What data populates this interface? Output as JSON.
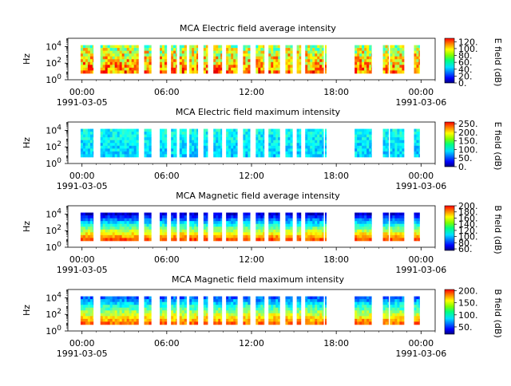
{
  "chart_data": [
    {
      "type": "heatmap",
      "title": "MCA  Electric field average intensity",
      "ylabel": "Hz",
      "yscale": "log",
      "ylim": [
        1,
        100000
      ],
      "yticks": [
        {
          "exp": "0"
        },
        {
          "exp": "2"
        },
        {
          "exp": "4"
        }
      ],
      "x_ticks": [
        "00:00",
        "06:00",
        "12:00",
        "18:00",
        "00:00"
      ],
      "x_dates": [
        "1991-03-05",
        "1991-03-06"
      ],
      "xlim_hours": [
        -1,
        25
      ],
      "colorbar": {
        "label": "E field (dB)",
        "ticks": [
          "0.",
          "20.",
          "40.",
          "60.",
          "80.",
          "100.",
          "120."
        ],
        "min": 0,
        "max": 130
      },
      "level": 0.55,
      "data_segments_hours": [
        [
          -0.1,
          0.8
        ],
        [
          1.3,
          4.0
        ],
        [
          4.4,
          4.9
        ],
        [
          5.5,
          6.0
        ],
        [
          6.3,
          6.7
        ],
        [
          6.9,
          7.4
        ],
        [
          7.6,
          8.2
        ],
        [
          8.6,
          8.9
        ],
        [
          9.3,
          9.9
        ],
        [
          10.2,
          11.0
        ],
        [
          11.4,
          11.9
        ],
        [
          12.3,
          12.9
        ],
        [
          13.2,
          14.0
        ],
        [
          14.4,
          14.9
        ],
        [
          15.2,
          15.5
        ],
        [
          15.8,
          17.1
        ],
        [
          17.2,
          17.3
        ],
        [
          19.3,
          20.5
        ],
        [
          21.3,
          21.7
        ],
        [
          21.8,
          22.8
        ],
        [
          23.5,
          23.9
        ]
      ]
    },
    {
      "type": "heatmap",
      "title": "MCA  Electric field maximum intensity",
      "ylabel": "Hz",
      "yscale": "log",
      "ylim": [
        1,
        100000
      ],
      "yticks": [
        {
          "exp": "0"
        },
        {
          "exp": "2"
        },
        {
          "exp": "4"
        }
      ],
      "x_ticks": [
        "00:00",
        "06:00",
        "12:00",
        "18:00",
        "00:00"
      ],
      "x_dates": [
        "1991-03-05",
        "1991-03-06"
      ],
      "xlim_hours": [
        -1,
        25
      ],
      "colorbar": {
        "label": "E field (dB)",
        "ticks": [
          "0.",
          "50.",
          "100.",
          "150.",
          "200.",
          "250."
        ],
        "min": 0,
        "max": 260
      },
      "level": 0.38,
      "data_segments_hours": [
        [
          -0.1,
          0.8
        ],
        [
          1.3,
          4.0
        ],
        [
          4.4,
          4.9
        ],
        [
          5.5,
          6.0
        ],
        [
          6.3,
          6.7
        ],
        [
          6.9,
          7.4
        ],
        [
          7.6,
          8.2
        ],
        [
          8.6,
          8.9
        ],
        [
          9.3,
          9.9
        ],
        [
          10.2,
          11.0
        ],
        [
          11.4,
          11.9
        ],
        [
          12.3,
          12.9
        ],
        [
          13.2,
          14.0
        ],
        [
          14.4,
          14.9
        ],
        [
          15.2,
          15.5
        ],
        [
          15.8,
          17.1
        ],
        [
          17.2,
          17.3
        ],
        [
          19.3,
          20.5
        ],
        [
          21.3,
          21.7
        ],
        [
          21.8,
          22.8
        ],
        [
          23.5,
          23.9
        ]
      ]
    },
    {
      "type": "heatmap",
      "title": "MCA  Magnetic field average intensity",
      "ylabel": "Hz",
      "yscale": "log",
      "ylim": [
        1,
        100000
      ],
      "yticks": [
        {
          "exp": "0"
        },
        {
          "exp": "2"
        },
        {
          "exp": "4"
        }
      ],
      "x_ticks": [
        "00:00",
        "06:00",
        "12:00",
        "18:00",
        "00:00"
      ],
      "x_dates": [
        "1991-03-05",
        "1991-03-06"
      ],
      "xlim_hours": [
        -1,
        25
      ],
      "colorbar": {
        "label": "B field (dB)",
        "ticks": [
          "60.",
          "80.",
          "100.",
          "120.",
          "140.",
          "160.",
          "180.",
          "200."
        ],
        "min": 55,
        "max": 200
      },
      "level": 0.45,
      "data_segments_hours": [
        [
          -0.1,
          0.8
        ],
        [
          1.3,
          4.0
        ],
        [
          4.4,
          4.9
        ],
        [
          5.5,
          6.0
        ],
        [
          6.3,
          6.7
        ],
        [
          6.9,
          7.4
        ],
        [
          7.6,
          8.2
        ],
        [
          8.6,
          8.9
        ],
        [
          9.3,
          9.9
        ],
        [
          10.2,
          11.0
        ],
        [
          11.4,
          11.9
        ],
        [
          12.3,
          12.9
        ],
        [
          13.2,
          14.0
        ],
        [
          14.4,
          14.9
        ],
        [
          15.2,
          15.5
        ],
        [
          15.8,
          17.1
        ],
        [
          17.2,
          17.3
        ],
        [
          19.3,
          20.5
        ],
        [
          21.3,
          21.7
        ],
        [
          21.8,
          22.8
        ],
        [
          23.5,
          23.9
        ]
      ]
    },
    {
      "type": "heatmap",
      "title": "MCA  Magnetic field maximum intensity",
      "ylabel": "Hz",
      "yscale": "log",
      "ylim": [
        1,
        100000
      ],
      "yticks": [
        {
          "exp": "0"
        },
        {
          "exp": "2"
        },
        {
          "exp": "4"
        }
      ],
      "x_ticks": [
        "00:00",
        "06:00",
        "12:00",
        "18:00",
        "00:00"
      ],
      "x_dates": [
        "1991-03-05",
        "1991-03-06"
      ],
      "xlim_hours": [
        -1,
        25
      ],
      "colorbar": {
        "label": "B field (dB)",
        "ticks": [
          "50.",
          "100.",
          "150.",
          "200."
        ],
        "min": 20,
        "max": 205
      },
      "level": 0.5,
      "data_segments_hours": [
        [
          -0.1,
          0.8
        ],
        [
          1.3,
          4.0
        ],
        [
          4.4,
          4.9
        ],
        [
          5.5,
          6.0
        ],
        [
          6.3,
          6.7
        ],
        [
          6.9,
          7.4
        ],
        [
          7.6,
          8.2
        ],
        [
          8.6,
          8.9
        ],
        [
          9.3,
          9.9
        ],
        [
          10.2,
          11.0
        ],
        [
          11.4,
          11.9
        ],
        [
          12.3,
          12.9
        ],
        [
          13.2,
          14.0
        ],
        [
          14.4,
          14.9
        ],
        [
          15.2,
          15.5
        ],
        [
          15.8,
          17.1
        ],
        [
          17.2,
          17.3
        ],
        [
          19.3,
          20.5
        ],
        [
          21.3,
          21.7
        ],
        [
          21.8,
          22.8
        ],
        [
          23.5,
          23.9
        ]
      ]
    }
  ]
}
